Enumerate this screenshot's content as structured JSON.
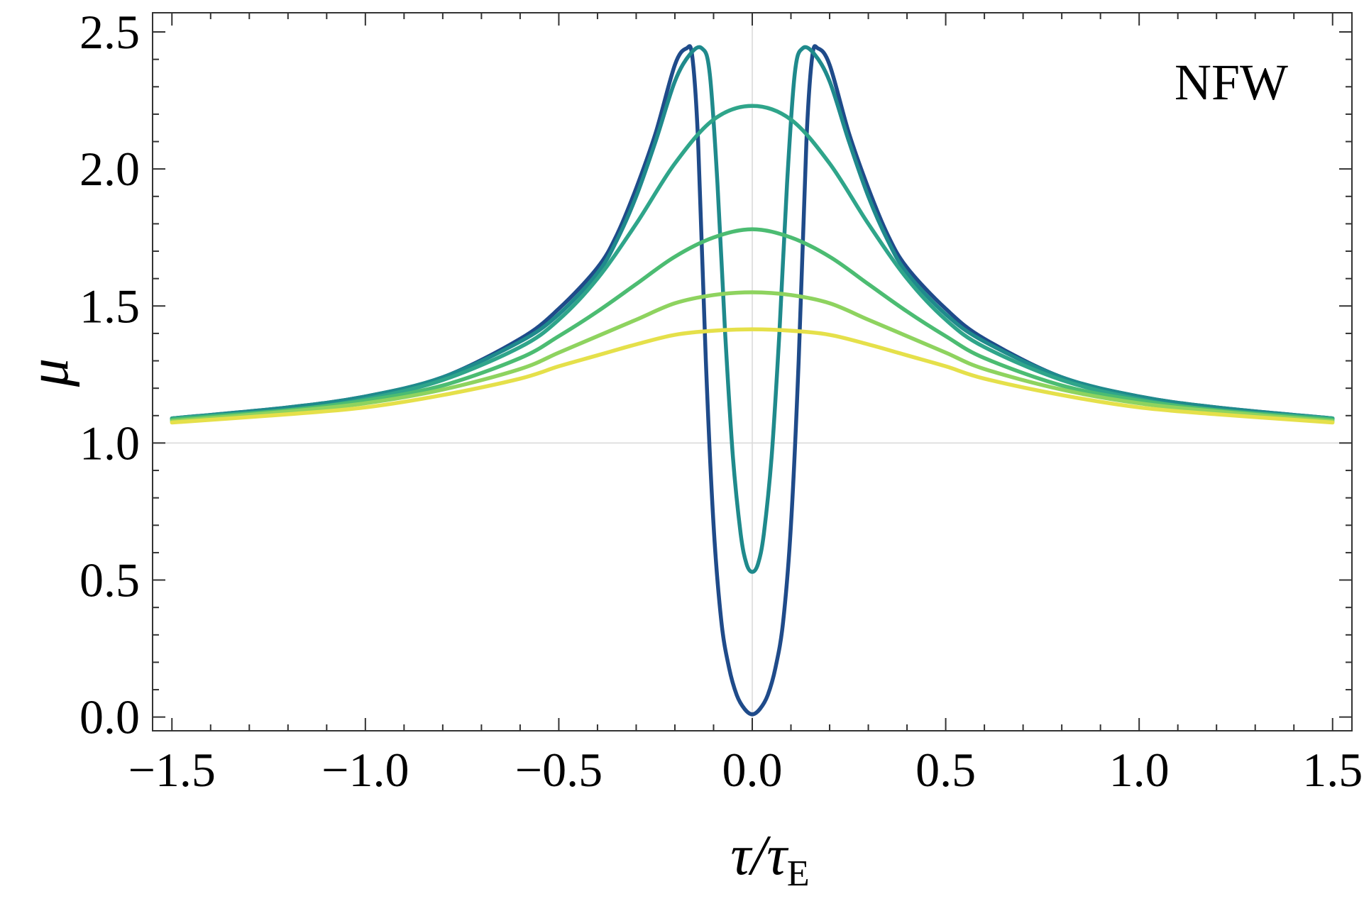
{
  "chart_data": {
    "type": "line",
    "title": "",
    "annotation": "NFW",
    "xlabel": "τ/τ",
    "xlabel_subscript": "E",
    "ylabel": "μ",
    "xlim": [
      -1.55,
      1.55
    ],
    "ylim": [
      -0.05,
      2.57
    ],
    "xticks": [
      -1.5,
      -1.0,
      -0.5,
      0.0,
      0.5,
      1.0,
      1.5
    ],
    "xtick_labels": [
      "−1.5",
      "−1.0",
      "−0.5",
      "0.0",
      "0.5",
      "1.0",
      "1.5"
    ],
    "yticks": [
      0.0,
      0.5,
      1.0,
      1.5,
      2.0,
      2.5
    ],
    "ytick_labels": [
      "0.0",
      "0.5",
      "1.0",
      "1.5",
      "2.0",
      "2.5"
    ],
    "reference_lines": {
      "x": 0.0,
      "y": 1.0
    },
    "grid": false,
    "legend": "none",
    "series": [
      {
        "color": "#1f4b8a",
        "x": [
          -1.5,
          -1.2,
          -1.0,
          -0.8,
          -0.6,
          -0.5,
          -0.4,
          -0.35,
          -0.3,
          -0.25,
          -0.2,
          -0.17,
          -0.155,
          -0.14,
          -0.12,
          -0.1,
          -0.08,
          -0.06,
          -0.04,
          -0.02,
          0.0,
          0.02,
          0.04,
          0.06,
          0.08,
          0.1,
          0.12,
          0.14,
          0.155,
          0.17,
          0.2,
          0.25,
          0.3,
          0.35,
          0.4,
          0.5,
          0.6,
          0.8,
          1.0,
          1.2,
          1.5
        ],
        "y": [
          1.09,
          1.13,
          1.17,
          1.24,
          1.38,
          1.49,
          1.64,
          1.76,
          1.93,
          2.13,
          2.38,
          2.44,
          2.41,
          2.1,
          1.3,
          0.7,
          0.35,
          0.18,
          0.08,
          0.03,
          0.01,
          0.03,
          0.08,
          0.18,
          0.35,
          0.7,
          1.3,
          2.1,
          2.41,
          2.44,
          2.38,
          2.13,
          1.93,
          1.76,
          1.64,
          1.49,
          1.38,
          1.24,
          1.17,
          1.13,
          1.09
        ]
      },
      {
        "color": "#1f8a8c",
        "x": [
          -1.5,
          -1.2,
          -1.0,
          -0.8,
          -0.6,
          -0.5,
          -0.4,
          -0.35,
          -0.3,
          -0.25,
          -0.2,
          -0.16,
          -0.13,
          -0.11,
          -0.09,
          -0.07,
          -0.05,
          -0.03,
          -0.015,
          0.0,
          0.015,
          0.03,
          0.05,
          0.07,
          0.09,
          0.11,
          0.13,
          0.16,
          0.2,
          0.25,
          0.3,
          0.35,
          0.4,
          0.5,
          0.6,
          0.8,
          1.0,
          1.2,
          1.5
        ],
        "y": [
          1.09,
          1.13,
          1.17,
          1.24,
          1.37,
          1.47,
          1.62,
          1.74,
          1.9,
          2.1,
          2.32,
          2.42,
          2.44,
          2.35,
          1.95,
          1.4,
          0.95,
          0.67,
          0.56,
          0.53,
          0.56,
          0.67,
          0.95,
          1.4,
          1.95,
          2.35,
          2.44,
          2.42,
          2.32,
          2.1,
          1.9,
          1.74,
          1.62,
          1.47,
          1.37,
          1.24,
          1.17,
          1.13,
          1.09
        ]
      },
      {
        "color": "#2fa58a",
        "x": [
          -1.5,
          -1.2,
          -1.0,
          -0.8,
          -0.6,
          -0.5,
          -0.4,
          -0.3,
          -0.2,
          -0.1,
          0.0,
          0.1,
          0.2,
          0.3,
          0.4,
          0.5,
          0.6,
          0.8,
          1.0,
          1.2,
          1.5
        ],
        "y": [
          1.09,
          1.12,
          1.16,
          1.23,
          1.35,
          1.45,
          1.6,
          1.8,
          2.02,
          2.18,
          2.23,
          2.18,
          2.02,
          1.8,
          1.6,
          1.45,
          1.35,
          1.23,
          1.16,
          1.12,
          1.09
        ]
      },
      {
        "color": "#4cbc72",
        "x": [
          -1.5,
          -1.2,
          -1.0,
          -0.8,
          -0.6,
          -0.5,
          -0.4,
          -0.3,
          -0.2,
          -0.1,
          0.0,
          0.1,
          0.2,
          0.3,
          0.4,
          0.5,
          0.6,
          0.8,
          1.0,
          1.2,
          1.5
        ],
        "y": [
          1.085,
          1.12,
          1.155,
          1.21,
          1.31,
          1.39,
          1.48,
          1.58,
          1.68,
          1.75,
          1.78,
          1.75,
          1.68,
          1.58,
          1.48,
          1.39,
          1.31,
          1.21,
          1.155,
          1.12,
          1.085
        ]
      },
      {
        "color": "#8ed35f",
        "x": [
          -1.5,
          -1.2,
          -1.0,
          -0.8,
          -0.6,
          -0.5,
          -0.4,
          -0.3,
          -0.2,
          -0.1,
          0.0,
          0.1,
          0.2,
          0.3,
          0.4,
          0.5,
          0.6,
          0.8,
          1.0,
          1.2,
          1.5
        ],
        "y": [
          1.08,
          1.115,
          1.145,
          1.195,
          1.27,
          1.33,
          1.39,
          1.45,
          1.51,
          1.54,
          1.55,
          1.54,
          1.51,
          1.45,
          1.39,
          1.33,
          1.27,
          1.195,
          1.145,
          1.115,
          1.08
        ]
      },
      {
        "color": "#e5e04a",
        "x": [
          -1.5,
          -1.2,
          -1.0,
          -0.8,
          -0.6,
          -0.5,
          -0.4,
          -0.3,
          -0.2,
          -0.1,
          0.0,
          0.1,
          0.2,
          0.3,
          0.4,
          0.5,
          0.6,
          0.8,
          1.0,
          1.2,
          1.5
        ],
        "y": [
          1.075,
          1.105,
          1.13,
          1.175,
          1.235,
          1.28,
          1.32,
          1.36,
          1.395,
          1.41,
          1.415,
          1.41,
          1.395,
          1.36,
          1.32,
          1.28,
          1.235,
          1.175,
          1.13,
          1.105,
          1.075
        ]
      }
    ]
  }
}
